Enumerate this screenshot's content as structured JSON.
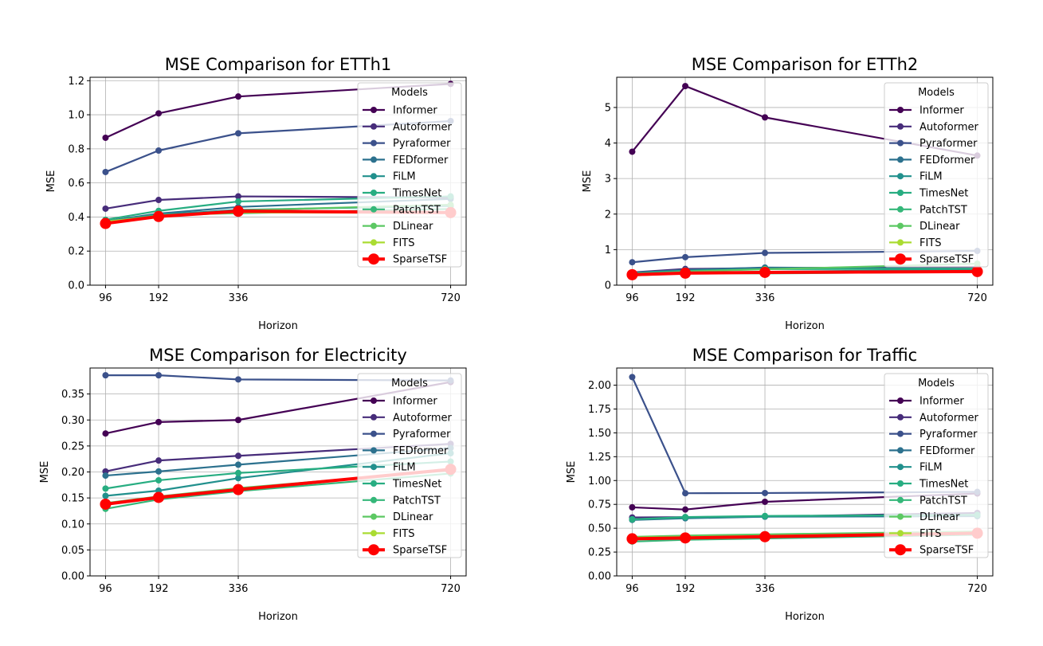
{
  "x_label": "Horizon",
  "y_label": "MSE",
  "legend_title": "Models",
  "colors": {
    "Informer": "#440154",
    "Autoformer": "#472c7a",
    "Pyraformer": "#3b518b",
    "FEDformer": "#2c718e",
    "FiLM": "#21908d",
    "TimesNet": "#27ad81",
    "PatchTST": "#35b779",
    "DLinear": "#5cc863",
    "FITS": "#aadc32",
    "SparseTSF": "#ff0000"
  },
  "chart_data": [
    {
      "type": "line",
      "title": "MSE Comparison for ETTh1",
      "xlabel": "Horizon",
      "ylabel": "MSE",
      "x": [
        96,
        192,
        336,
        720
      ],
      "xlim": [
        68,
        748
      ],
      "ylim": [
        0,
        1.22
      ],
      "yticks": [
        "0.0",
        "0.2",
        "0.4",
        "0.6",
        "0.8",
        "1.0",
        "1.2"
      ],
      "yticks_values": [
        0,
        0.2,
        0.4,
        0.6,
        0.8,
        1.0,
        1.2
      ],
      "grid": true,
      "legend": "top-right",
      "series": [
        {
          "name": "Informer",
          "values": [
            0.865,
            1.008,
            1.107,
            1.181
          ]
        },
        {
          "name": "Autoformer",
          "values": [
            0.449,
            0.5,
            0.521,
            0.514
          ]
        },
        {
          "name": "Pyraformer",
          "values": [
            0.664,
            0.79,
            0.891,
            0.963
          ]
        },
        {
          "name": "FEDformer",
          "values": [
            0.376,
            0.42,
            0.459,
            0.506
          ]
        },
        {
          "name": "FiLM",
          "values": [
            0.371,
            0.414,
            0.442,
            0.465
          ]
        },
        {
          "name": "TimesNet",
          "values": [
            0.384,
            0.436,
            0.491,
            0.521
          ]
        },
        {
          "name": "PatchTST",
          "values": [
            0.37,
            0.413,
            0.422,
            0.447
          ]
        },
        {
          "name": "DLinear",
          "values": [
            0.375,
            0.405,
            0.439,
            0.472
          ]
        },
        {
          "name": "FITS",
          "values": [
            0.372,
            0.404,
            0.427,
            0.424
          ]
        },
        {
          "name": "SparseTSF",
          "values": [
            0.362,
            0.403,
            0.434,
            0.426
          ]
        }
      ]
    },
    {
      "type": "line",
      "title": "MSE Comparison for ETTh2",
      "xlabel": "Horizon",
      "ylabel": "MSE",
      "x": [
        96,
        192,
        336,
        720
      ],
      "xlim": [
        68,
        748
      ],
      "ylim": [
        0,
        5.85
      ],
      "yticks": [
        "0",
        "1",
        "2",
        "3",
        "4",
        "5"
      ],
      "yticks_values": [
        0,
        1,
        2,
        3,
        4,
        5
      ],
      "grid": true,
      "legend": "top-right",
      "series": [
        {
          "name": "Informer",
          "values": [
            3.755,
            5.602,
            4.721,
            3.647
          ]
        },
        {
          "name": "Autoformer",
          "values": [
            0.358,
            0.456,
            0.482,
            0.515
          ]
        },
        {
          "name": "Pyraformer",
          "values": [
            0.645,
            0.788,
            0.907,
            0.963
          ]
        },
        {
          "name": "FEDformer",
          "values": [
            0.346,
            0.429,
            0.496,
            0.463
          ]
        },
        {
          "name": "FiLM",
          "values": [
            0.284,
            0.357,
            0.377,
            0.439
          ]
        },
        {
          "name": "TimesNet",
          "values": [
            0.34,
            0.402,
            0.452,
            0.462
          ]
        },
        {
          "name": "PatchTST",
          "values": [
            0.274,
            0.341,
            0.329,
            0.379
          ]
        },
        {
          "name": "DLinear",
          "values": [
            0.289,
            0.383,
            0.448,
            0.605
          ]
        },
        {
          "name": "FITS",
          "values": [
            0.271,
            0.331,
            0.354,
            0.377
          ]
        },
        {
          "name": "SparseTSF",
          "values": [
            0.294,
            0.339,
            0.359,
            0.383
          ]
        }
      ]
    },
    {
      "type": "line",
      "title": "MSE Comparison for Electricity",
      "xlabel": "Horizon",
      "ylabel": "MSE",
      "x": [
        96,
        192,
        336,
        720
      ],
      "xlim": [
        68,
        748
      ],
      "ylim": [
        0,
        0.4
      ],
      "yticks": [
        "0.00",
        "0.05",
        "0.10",
        "0.15",
        "0.20",
        "0.25",
        "0.30",
        "0.35"
      ],
      "yticks_values": [
        0,
        0.05,
        0.1,
        0.15,
        0.2,
        0.25,
        0.3,
        0.35
      ],
      "grid": true,
      "legend": "top-right",
      "series": [
        {
          "name": "Informer",
          "values": [
            0.274,
            0.296,
            0.3,
            0.373
          ]
        },
        {
          "name": "Autoformer",
          "values": [
            0.201,
            0.222,
            0.231,
            0.254
          ]
        },
        {
          "name": "Pyraformer",
          "values": [
            0.386,
            0.386,
            0.378,
            0.376
          ]
        },
        {
          "name": "FEDformer",
          "values": [
            0.193,
            0.201,
            0.214,
            0.246
          ]
        },
        {
          "name": "FiLM",
          "values": [
            0.154,
            0.164,
            0.188,
            0.236
          ]
        },
        {
          "name": "TimesNet",
          "values": [
            0.168,
            0.184,
            0.198,
            0.22
          ]
        },
        {
          "name": "PatchTST",
          "values": [
            0.129,
            0.147,
            0.163,
            0.197
          ]
        },
        {
          "name": "DLinear",
          "values": [
            0.14,
            0.153,
            0.169,
            0.203
          ]
        },
        {
          "name": "FITS",
          "values": [
            0.138,
            0.152,
            0.166,
            0.205
          ]
        },
        {
          "name": "SparseTSF",
          "values": [
            0.138,
            0.151,
            0.166,
            0.205
          ]
        }
      ]
    },
    {
      "type": "line",
      "title": "MSE Comparison for Traffic",
      "xlabel": "Horizon",
      "ylabel": "MSE",
      "x": [
        96,
        192,
        336,
        720
      ],
      "xlim": [
        68,
        748
      ],
      "ylim": [
        0,
        2.18
      ],
      "yticks": [
        "0.00",
        "0.25",
        "0.50",
        "0.75",
        "1.00",
        "1.25",
        "1.50",
        "1.75",
        "2.00"
      ],
      "yticks_values": [
        0,
        0.25,
        0.5,
        0.75,
        1.0,
        1.25,
        1.5,
        1.75,
        2.0
      ],
      "grid": true,
      "legend": "top-right",
      "series": [
        {
          "name": "Informer",
          "values": [
            0.719,
            0.696,
            0.777,
            0.864
          ]
        },
        {
          "name": "Autoformer",
          "values": [
            0.613,
            0.616,
            0.622,
            0.66
          ]
        },
        {
          "name": "Pyraformer",
          "values": [
            2.085,
            0.867,
            0.869,
            0.881
          ]
        },
        {
          "name": "FEDformer",
          "values": [
            0.587,
            0.604,
            0.621,
            0.626
          ]
        },
        {
          "name": "FiLM",
          "values": [
            0.593,
            0.611,
            0.623,
            0.639
          ]
        },
        {
          "name": "TimesNet",
          "values": [
            0.593,
            0.617,
            0.629,
            0.64
          ]
        },
        {
          "name": "PatchTST",
          "values": [
            0.36,
            0.379,
            0.392,
            0.432
          ]
        },
        {
          "name": "DLinear",
          "values": [
            0.41,
            0.423,
            0.436,
            0.466
          ]
        },
        {
          "name": "FITS",
          "values": [
            0.401,
            0.407,
            0.42,
            0.456
          ]
        },
        {
          "name": "SparseTSF",
          "values": [
            0.389,
            0.398,
            0.411,
            0.448
          ]
        }
      ]
    }
  ]
}
